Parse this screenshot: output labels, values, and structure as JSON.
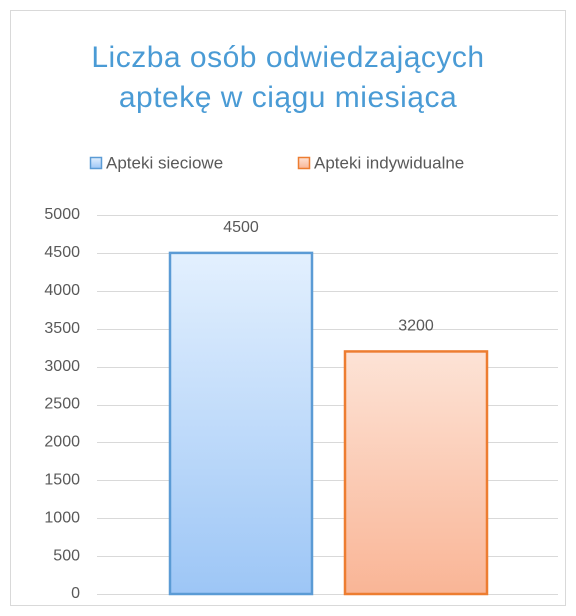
{
  "chart_data": {
    "type": "bar",
    "title": "Liczba osób odwiedzających aptekę w ciągu miesiąca",
    "categories": [
      null
    ],
    "series": [
      {
        "name": "Apteki sieciowe",
        "color": "#5b9bd5",
        "values": [
          4500
        ]
      },
      {
        "name": "Apteki indywidualne",
        "color": "#ed7d31",
        "values": [
          3200
        ]
      }
    ],
    "ylim": [
      0,
      5000
    ],
    "yticks": [
      0,
      500,
      1000,
      1500,
      2000,
      2500,
      3000,
      3500,
      4000,
      4500,
      5000
    ],
    "grid": true,
    "legend": "top"
  }
}
